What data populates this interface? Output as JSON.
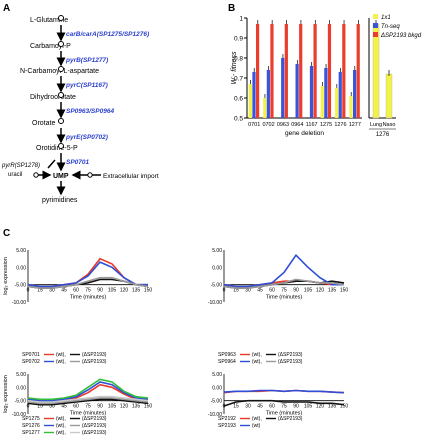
{
  "panels": {
    "A": "A",
    "B": "B",
    "C": "C"
  },
  "pathway": {
    "metabolites": [
      "L-Glutamine",
      "Carbamoyl-P",
      "N-Carbamoyl-L-aspartate",
      "Dihydroorotate",
      "Orotate",
      "Orotidine-5-P",
      "UMP",
      "pyrimidines"
    ],
    "enzymes": [
      "carB/carA(SP1275/SP1276)",
      "pyrB(SP1277)",
      "pyrC(SP1167)",
      "SP0963/SP0964",
      "pyrE(SP0702)",
      "SP0701"
    ],
    "side_left": "pyrR(SP1278)",
    "side_left2": "uracil",
    "side_right": "Extracellular import"
  },
  "chart_data": [
    {
      "type": "bar",
      "ylabel": "W - fitness",
      "xlabel": "gene deletion",
      "ylim": [
        0.5,
        1.0
      ],
      "yticks": [
        "0.5",
        "0.6",
        "0.7",
        "0.8",
        "0.9",
        "1"
      ],
      "categories": [
        "0701",
        "0702",
        "0963",
        "0964",
        "1167",
        "1275",
        "1276",
        "1277"
      ],
      "series": [
        {
          "name": "1x1",
          "color": "#f2f24a",
          "values": [
            0.67,
            0.6,
            null,
            null,
            null,
            0.66,
            0.65,
            0.61
          ]
        },
        {
          "name": "Tn-seq",
          "color": "#3a53d8",
          "values": [
            0.73,
            0.74,
            0.8,
            0.77,
            0.76,
            0.75,
            0.73,
            0.74
          ]
        },
        {
          "name": "ΔSP2193 bkgd",
          "color": "#ea3d2c",
          "values": [
            0.97,
            0.97,
            0.97,
            0.97,
            0.97,
            0.97,
            0.97,
            0.97
          ]
        }
      ],
      "extra_group": {
        "categories": [
          "Lung",
          "Naso"
        ],
        "label": "1276",
        "values": [
          0.97,
          0.72
        ]
      }
    },
    {
      "type": "line",
      "x": [
        0,
        15,
        30,
        45,
        60,
        75,
        90,
        105,
        120,
        135,
        150
      ],
      "xlabel": "Time (minutes)",
      "ylabel": "log₂ expression",
      "yticks": [
        "5.00",
        "0.00",
        "-5.00",
        "-10.00"
      ],
      "ylim": [
        -10,
        5
      ],
      "series": [
        {
          "name": "SP0701 (wt)",
          "color": "#e8392c",
          "values": [
            -5,
            -5.5,
            -5.5,
            -5,
            -4.5,
            -2,
            2.5,
            1,
            -3,
            -5,
            -5
          ]
        },
        {
          "name": "SP0701 (ΔSP2193)",
          "color": "#111111",
          "values": [
            -5.5,
            -6,
            -6,
            -5.5,
            -5,
            -4.5,
            -3.5,
            -3.5,
            -4,
            -5,
            -5.5
          ]
        },
        {
          "name": "SP0702 (wt)",
          "color": "#2f4ed8",
          "values": [
            -5,
            -5.5,
            -5.5,
            -5,
            -4.5,
            -2.5,
            1.5,
            0,
            -3,
            -5,
            -5
          ]
        },
        {
          "name": "SP0702 (ΔSP2193)",
          "color": "#9a9a9a",
          "values": [
            -5.5,
            -6,
            -6,
            -5.5,
            -5,
            -4,
            -3,
            -3,
            -4,
            -5,
            -5.5
          ]
        }
      ],
      "legend": [
        [
          "SP0701",
          "(wt),",
          "(ΔSP2193)"
        ],
        [
          "SP0702",
          "(wt),",
          "(ΔSP2193)"
        ]
      ]
    },
    {
      "type": "line",
      "x": [
        0,
        15,
        30,
        45,
        60,
        75,
        90,
        105,
        120,
        135,
        150
      ],
      "xlabel": "Time (minutes)",
      "ylabel": "",
      "yticks": [
        "5.00",
        "0.00",
        "-5.00",
        "-10.00"
      ],
      "ylim": [
        -10,
        5
      ],
      "series": [
        {
          "name": "SP0963 (wt)",
          "color": "#e8392c",
          "values": [
            -5,
            -5.5,
            -5.5,
            -5,
            -4.5,
            -4,
            -4,
            -4,
            -4.5,
            -5,
            -5
          ]
        },
        {
          "name": "SP0963 (ΔSP2193)",
          "color": "#111111",
          "values": [
            -5.5,
            -6,
            -6,
            -5.5,
            -5,
            -4.5,
            -4,
            -4,
            -4.5,
            -4,
            -4.5
          ]
        },
        {
          "name": "SP0964 (wt)",
          "color": "#2f4ed8",
          "values": [
            -5,
            -5.5,
            -5.5,
            -5,
            -4.5,
            -1.5,
            3.5,
            0,
            -3,
            -5,
            -5
          ]
        },
        {
          "name": "SP0964 (ΔSP2193)",
          "color": "#9a9a9a",
          "values": [
            -5.5,
            -6,
            -6,
            -5.5,
            -5,
            -4.5,
            -3.5,
            -4,
            -4.5,
            -4.5,
            -5
          ]
        }
      ],
      "legend": [
        [
          "SP0963",
          "(wt),",
          "(ΔSP2193)"
        ],
        [
          "SP0964",
          "(wt),",
          "(ΔSP2193)"
        ]
      ]
    },
    {
      "type": "line",
      "x": [
        0,
        15,
        30,
        45,
        60,
        75,
        90,
        105,
        120,
        135,
        150
      ],
      "xlabel": "Time (minutes)",
      "ylabel": "log₂ expression",
      "yticks": [
        "5.00",
        "0.00",
        "-5.00",
        "-10.00"
      ],
      "ylim": [
        -10,
        5
      ],
      "series": [
        {
          "name": "SP1275 (wt)",
          "color": "#e8392c",
          "values": [
            -4.5,
            -5,
            -5,
            -4.5,
            -4,
            -2,
            1,
            0,
            -2.5,
            -4.5,
            -5
          ]
        },
        {
          "name": "SP1275 (ΔSP2193)",
          "color": "#111111",
          "values": [
            -6,
            -6.5,
            -6.5,
            -6,
            -5.5,
            -5,
            -4.5,
            -4.5,
            -5,
            -5.5,
            -6
          ]
        },
        {
          "name": "SP1276 (wt)",
          "color": "#2f4ed8",
          "values": [
            -4.5,
            -5,
            -5,
            -4.5,
            -3.5,
            -1,
            2,
            1,
            -2,
            -4,
            -4.5
          ]
        },
        {
          "name": "SP1276 (ΔSP2193)",
          "color": "#9a9a9a",
          "values": [
            -5.5,
            -6,
            -6,
            -5.5,
            -5,
            -4.5,
            -4,
            -4,
            -4.5,
            -5,
            -5.5
          ]
        },
        {
          "name": "SP1277 (wt)",
          "color": "#2fbf3a",
          "values": [
            -4,
            -4.5,
            -4.5,
            -4,
            -3,
            0,
            3,
            2,
            -1.5,
            -3.5,
            -4
          ]
        },
        {
          "name": "SP1277 (ΔSP2193)",
          "color": "#c8c8c8",
          "values": [
            -5,
            -5.5,
            -5.5,
            -5,
            -4.5,
            -4,
            -3.5,
            -3.5,
            -4,
            -4.5,
            -5
          ]
        }
      ],
      "legend": [
        [
          "SP1275",
          "(wt),",
          "(ΔSP2193)"
        ],
        [
          "SP1276",
          "(wt),",
          "(ΔSP2193)"
        ],
        [
          "SP1277",
          "(wt),",
          "(ΔSP2193)"
        ]
      ]
    },
    {
      "type": "line",
      "x": [
        0,
        15,
        30,
        45,
        60,
        75,
        90,
        105,
        120,
        135,
        150
      ],
      "xlabel": "Time (minutes)",
      "ylabel": "",
      "yticks": [
        "5.00",
        "0.00",
        "-5.00",
        "-10.00"
      ],
      "ylim": [
        -10,
        5
      ],
      "series": [
        {
          "name": "SP2192 (wt)",
          "color": "#e8392c",
          "values": [
            -2,
            -1.5,
            -1.5,
            -1.5,
            -1.2,
            -1.5,
            -1.2,
            -1.5,
            -1.5,
            -1.8,
            -2
          ]
        },
        {
          "name": "SP2192 (ΔSP2193)",
          "color": "#111111",
          "values": [
            -7,
            -5.5,
            -5,
            -5,
            -5,
            -5.5,
            -5.5,
            -5.5,
            -6,
            -6,
            -6.5
          ]
        },
        {
          "name": "SP2193 (wt)",
          "color": "#2f4ed8",
          "values": [
            -1.8,
            -1.5,
            -1.5,
            -1.2,
            -1.2,
            -1.5,
            -1.2,
            -1.5,
            -1.5,
            -1.8,
            -2
          ]
        }
      ],
      "legend": [
        [
          "SP2192",
          "(wt),",
          "(ΔSP2193)"
        ],
        [
          "SP2193",
          "(wt)",
          ""
        ]
      ]
    }
  ]
}
